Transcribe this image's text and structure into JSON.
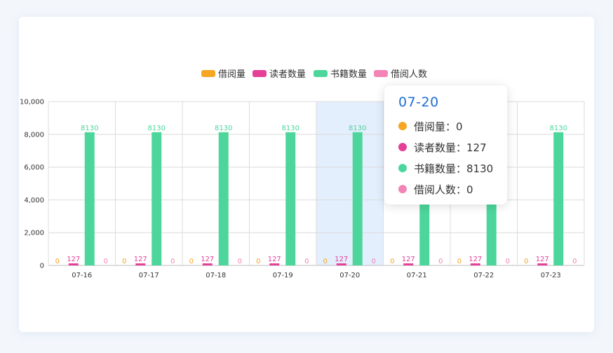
{
  "chart_data": {
    "type": "bar",
    "title": "",
    "xlabel": "",
    "ylabel": "",
    "categories": [
      "07-16",
      "07-17",
      "07-18",
      "07-19",
      "07-20",
      "07-21",
      "07-22",
      "07-23"
    ],
    "series": [
      {
        "name": "借阅量",
        "color": "#f5a623",
        "values": [
          0,
          0,
          0,
          0,
          0,
          0,
          0,
          0
        ]
      },
      {
        "name": "读者数量",
        "color": "#e53f97",
        "values": [
          127,
          127,
          127,
          127,
          127,
          127,
          127,
          127
        ]
      },
      {
        "name": "书籍数量",
        "color": "#4cd69b",
        "values": [
          8130,
          8130,
          8130,
          8130,
          8130,
          8130,
          8130,
          8130
        ]
      },
      {
        "name": "借阅人数",
        "color": "#f384b6",
        "values": [
          0,
          0,
          0,
          0,
          0,
          0,
          0,
          0
        ]
      }
    ],
    "ylim": [
      0,
      10000
    ],
    "yticks": [
      "0",
      "2,000",
      "4,000",
      "6,000",
      "8,000",
      "10,000"
    ],
    "grid": true,
    "legend_position": "top-center",
    "highlighted_category": "07-20"
  },
  "tooltip": {
    "title": "07-20",
    "rows": [
      {
        "label": "借阅量：0",
        "color": "#f5a623"
      },
      {
        "label": "读者数量：127",
        "color": "#e53f97"
      },
      {
        "label": "书籍数量：8130",
        "color": "#4cd69b"
      },
      {
        "label": "借阅人数：0",
        "color": "#f384b6"
      }
    ]
  }
}
